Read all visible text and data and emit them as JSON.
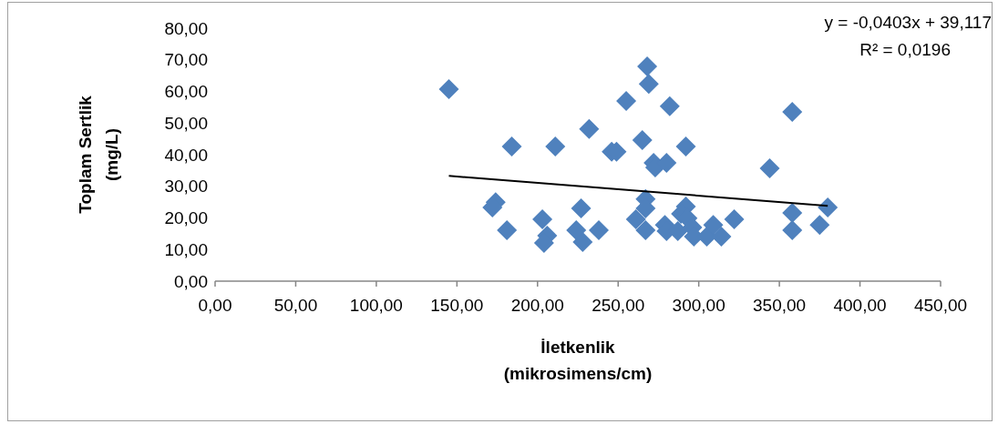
{
  "chart_data": {
    "type": "scatter",
    "xlabel": "İletkenlik\n(mikrosimens/cm)",
    "ylabel": "Toplam Sertlik\n(mg/L)",
    "marker": "diamond",
    "grid": false,
    "xlim": [
      0,
      450
    ],
    "ylim": [
      0,
      80
    ],
    "xticks": [
      {
        "value": 0,
        "label": "0,00"
      },
      {
        "value": 50,
        "label": "50,00"
      },
      {
        "value": 100,
        "label": "100,00"
      },
      {
        "value": 150,
        "label": "150,00"
      },
      {
        "value": 200,
        "label": "200,00"
      },
      {
        "value": 250,
        "label": "250,00"
      },
      {
        "value": 300,
        "label": "300,00"
      },
      {
        "value": 350,
        "label": "350,00"
      },
      {
        "value": 400,
        "label": "400,00"
      },
      {
        "value": 450,
        "label": "450,00"
      }
    ],
    "yticks": [
      {
        "value": 0,
        "label": "0,00"
      },
      {
        "value": 10,
        "label": "10,00"
      },
      {
        "value": 20,
        "label": "20,00"
      },
      {
        "value": 30,
        "label": "30,00"
      },
      {
        "value": 40,
        "label": "40,00"
      },
      {
        "value": 50,
        "label": "50,00"
      },
      {
        "value": 60,
        "label": "60,00"
      },
      {
        "value": 70,
        "label": "70,00"
      },
      {
        "value": 80,
        "label": "80,00"
      }
    ],
    "annotations": [
      "y = -0,0403x + 39,117",
      "R² = 0,0196"
    ],
    "series": [
      {
        "color": "#4f81bd",
        "x": [
          145,
          184,
          211,
          232,
          255,
          268,
          269,
          282,
          246,
          249,
          265,
          272,
          273,
          280,
          174,
          172,
          181,
          203,
          206,
          204,
          227,
          224,
          228,
          238,
          267,
          267,
          261,
          267,
          279,
          280,
          287,
          292,
          289,
          293,
          296,
          297,
          305,
          309,
          314,
          322,
          344,
          358,
          358,
          358,
          375,
          380,
          292
        ],
        "values": [
          60.7,
          42.6,
          42.6,
          48.1,
          57.0,
          67.9,
          62.4,
          55.3,
          40.9,
          40.9,
          44.6,
          37.4,
          36.0,
          37.4,
          25.0,
          23.3,
          16.1,
          19.6,
          14.4,
          12.1,
          23.0,
          16.1,
          12.4,
          16.1,
          26.0,
          23.0,
          19.6,
          16.1,
          17.8,
          15.8,
          15.8,
          23.6,
          21.3,
          19.9,
          17.0,
          14.1,
          14.1,
          17.8,
          14.1,
          19.6,
          35.7,
          53.5,
          21.6,
          16.1,
          17.8,
          23.3,
          42.6
        ]
      },
      {
        "type": "line",
        "color": "#000000",
        "marker": "none",
        "x": [
          145,
          380
        ],
        "values": [
          33.3,
          23.8
        ]
      }
    ]
  }
}
